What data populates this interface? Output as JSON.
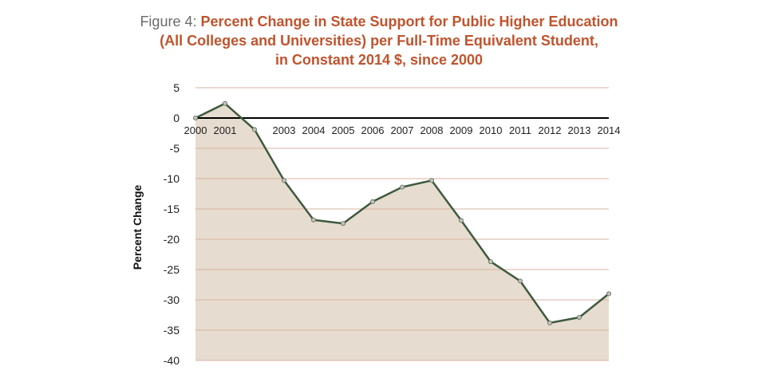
{
  "figure": {
    "prefix": "Figure 4: ",
    "title_lines": [
      "Percent Change in State Support for Public Higher Education",
      "(All Colleges and Universities) per Full-Time Equivalent Student,",
      "in Constant 2014 $, since 2000"
    ]
  },
  "chart_data": {
    "type": "area",
    "title": "Percent Change in State Support for Public Higher Education (All Colleges and Universities) per Full-Time Equivalent Student, in Constant 2014 $, since 2000",
    "xlabel": "",
    "ylabel": "Percent Change",
    "x": [
      2000,
      2001,
      2002,
      2003,
      2004,
      2005,
      2006,
      2007,
      2008,
      2009,
      2010,
      2011,
      2012,
      2013,
      2014
    ],
    "x_tick_labels": [
      "2000",
      "2001",
      "",
      "2003",
      "2004",
      "2005",
      "2006",
      "2007",
      "2008",
      "2009",
      "2010",
      "2011",
      "2012",
      "2013",
      "2014"
    ],
    "values": [
      0,
      2.4,
      -1.9,
      -10.3,
      -16.8,
      -17.4,
      -13.8,
      -11.4,
      -10.3,
      -16.9,
      -23.7,
      -26.9,
      -33.8,
      -32.9,
      -29.0
    ],
    "ylim": [
      -40,
      5
    ],
    "y_ticks": [
      5,
      0,
      -5,
      -10,
      -15,
      -20,
      -25,
      -30,
      -35,
      -40
    ],
    "grid": true,
    "colors": {
      "fill": "#e6dccf",
      "line": "#3e5a3e",
      "marker_fill": "#c2c2ba",
      "grid": "#d8b3a3",
      "zero_line": "#000000"
    }
  }
}
